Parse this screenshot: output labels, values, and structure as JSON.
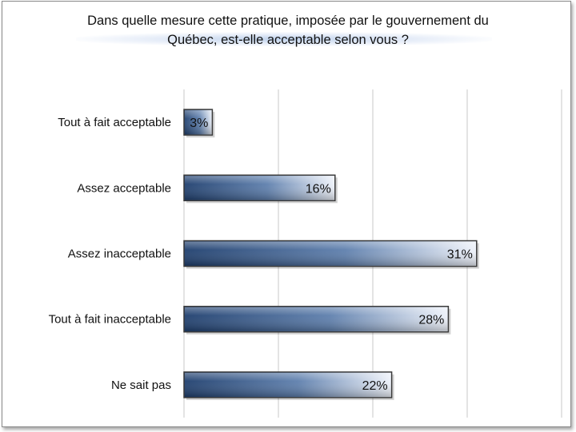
{
  "chart_data": {
    "type": "bar",
    "orientation": "horizontal",
    "title": "Dans quelle mesure cette pratique, imposée par le gouvernement du Québec, est-elle acceptable selon vous ?",
    "title_lines": [
      "Dans quelle mesure cette pratique, imposée par le gouvernement du",
      "Québec, est-elle acceptable selon vous ?"
    ],
    "categories": [
      "Tout à fait acceptable",
      "Assez acceptable",
      "Assez inacceptable",
      "Tout à fait inacceptable",
      "Ne sait pas"
    ],
    "values": [
      3,
      16,
      31,
      28,
      22
    ],
    "value_labels": [
      "3%",
      "16%",
      "31%",
      "28%",
      "22%"
    ],
    "xlim": [
      0,
      40
    ],
    "grid": true,
    "gridlines_at": [
      0,
      10,
      20,
      30,
      40
    ],
    "legend": "none",
    "colors": {
      "bar_dark": "#1f3f6e",
      "bar_mid": "#5e7fad",
      "bar_light": "#e8eef8",
      "bar_edge": "#3a3a3a",
      "grid": "#c8c8c8"
    }
  }
}
